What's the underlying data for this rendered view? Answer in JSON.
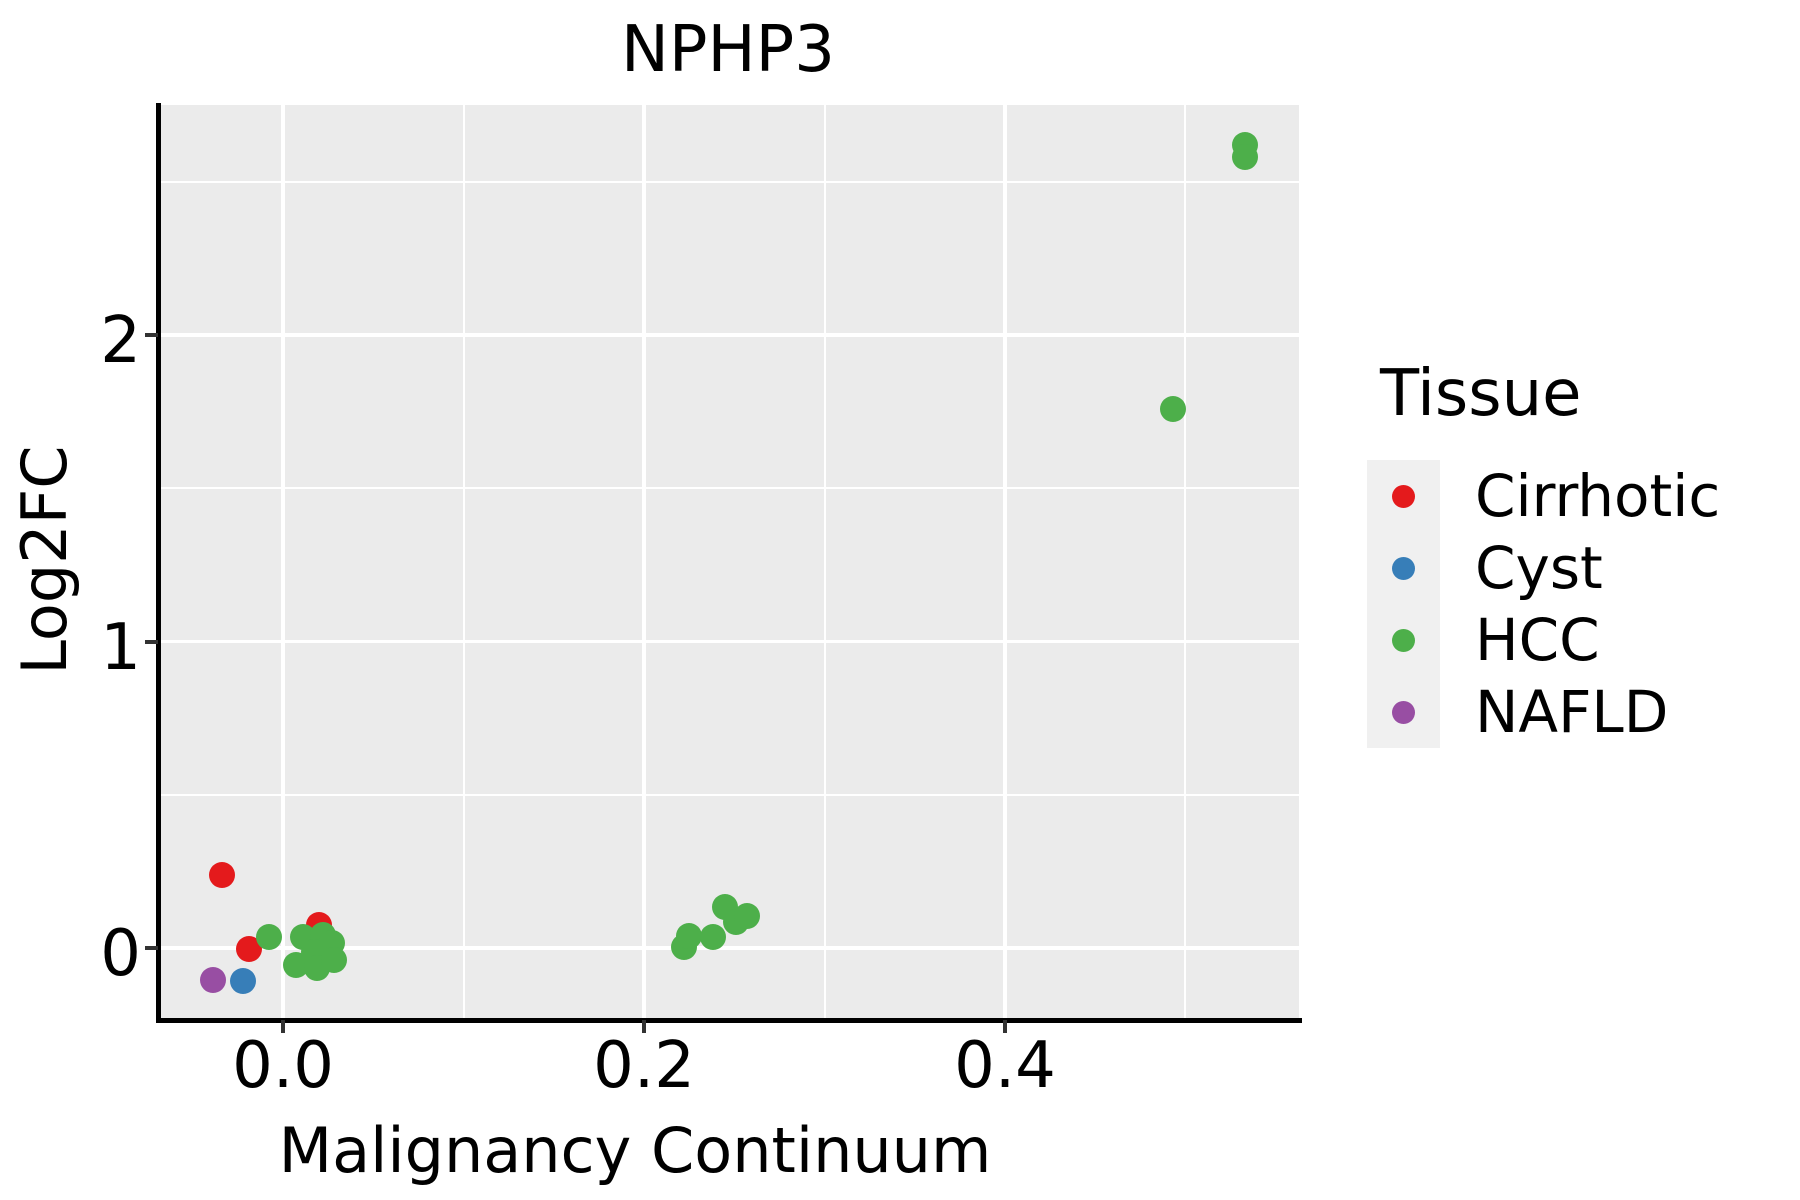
{
  "chart_data": {
    "type": "scatter",
    "title": "NPHP3",
    "xlabel": "Malignancy Continuum",
    "ylabel": "Log2FC",
    "xlim": [
      -0.0693,
      0.5629
    ],
    "ylim": [
      -0.2349,
      2.7504
    ],
    "x_major_ticks": [
      0.0,
      0.2,
      0.4
    ],
    "x_tick_labels": [
      "0.0",
      "0.2",
      "0.4"
    ],
    "x_minor_ticks": [
      0.1,
      0.3,
      0.5
    ],
    "y_major_ticks": [
      0,
      1,
      2
    ],
    "y_tick_labels": [
      "0",
      "1",
      "2"
    ],
    "y_minor_ticks": [
      0.5,
      1.5,
      2.5
    ],
    "grid": true,
    "panel_background": "#EBEBEB",
    "grid_color": "#FFFFFF",
    "series": [
      {
        "name": "Cirrhotic",
        "color": "#E41A1C",
        "points": [
          [
            -0.034,
            0.238
          ],
          [
            -0.019,
            -0.003
          ],
          [
            0.02,
            0.075
          ]
        ]
      },
      {
        "name": "Cyst",
        "color": "#377EB8",
        "points": [
          [
            -0.022,
            -0.108
          ]
        ]
      },
      {
        "name": "NAFLD",
        "color": "#984EA3",
        "points": [
          [
            -0.039,
            -0.104
          ]
        ]
      },
      {
        "name": "HCC",
        "color": "#4DAF4A",
        "points": [
          [
            -0.008,
            0.036
          ],
          [
            0.011,
            0.036
          ],
          [
            0.022,
            0.042
          ],
          [
            0.027,
            0.016
          ],
          [
            0.017,
            -0.013
          ],
          [
            0.007,
            -0.055
          ],
          [
            0.019,
            -0.065
          ],
          [
            0.028,
            -0.039
          ],
          [
            0.222,
            0.003
          ],
          [
            0.225,
            0.039
          ],
          [
            0.238,
            0.036
          ],
          [
            0.245,
            0.134
          ],
          [
            0.251,
            0.085
          ],
          [
            0.257,
            0.104
          ],
          [
            0.493,
            1.759
          ],
          [
            0.533,
            2.62
          ],
          [
            0.533,
            2.581
          ]
        ]
      }
    ],
    "legend": {
      "title": "Tissue",
      "position": "right",
      "entries": [
        {
          "label": "Cirrhotic",
          "color": "#E41A1C"
        },
        {
          "label": "Cyst",
          "color": "#377EB8"
        },
        {
          "label": "HCC",
          "color": "#4DAF4A"
        },
        {
          "label": "NAFLD",
          "color": "#984EA3"
        }
      ]
    }
  }
}
